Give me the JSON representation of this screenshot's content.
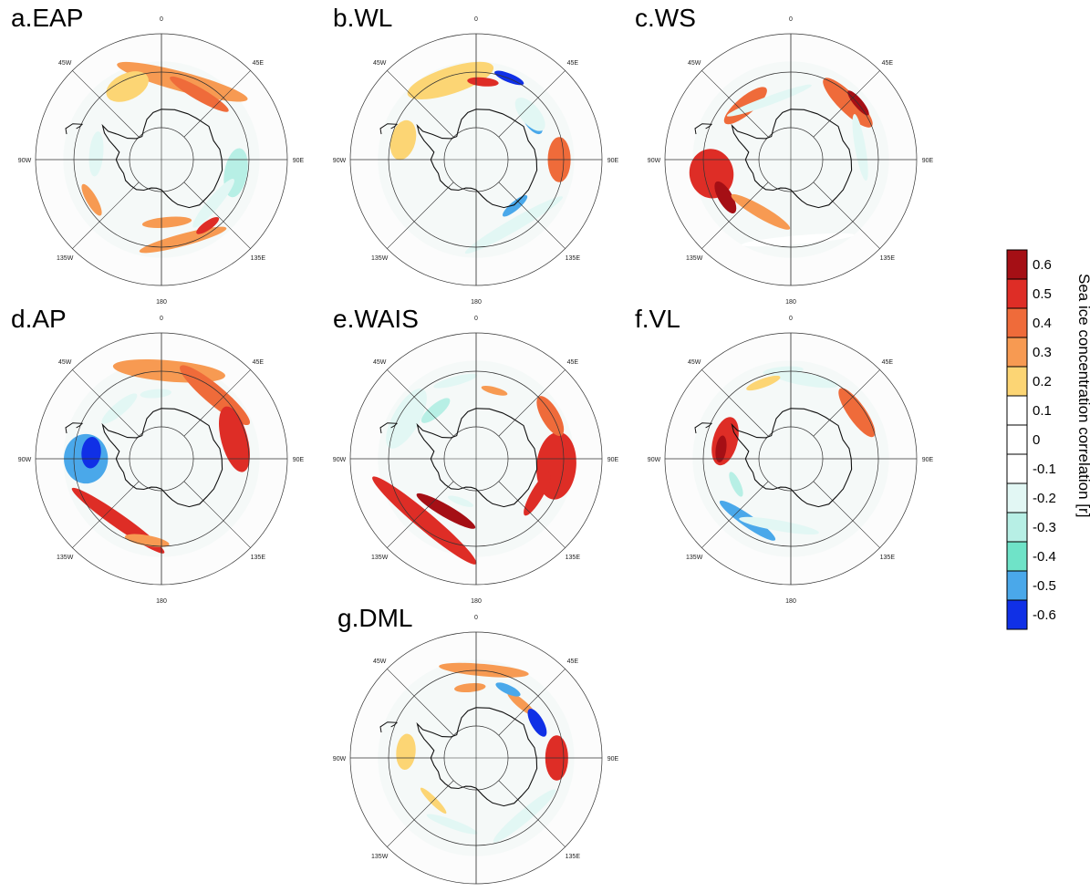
{
  "panels": [
    {
      "id": "a",
      "title": "a.EAP",
      "blobs": [
        {
          "lat": -58,
          "lon": 15,
          "w": 60,
          "h": 22,
          "rot": 0,
          "v": 0.25
        },
        {
          "lat": -60,
          "lon": 30,
          "w": 30,
          "h": 14,
          "rot": 0,
          "v": 0.4
        },
        {
          "lat": -58,
          "lon": -25,
          "w": 20,
          "h": 30,
          "rot": 0,
          "v": 0.2
        },
        {
          "lat": -64,
          "lon": -85,
          "w": 20,
          "h": 16,
          "rot": 0,
          "v": -0.2
        },
        {
          "lat": -60,
          "lon": 100,
          "w": 22,
          "h": 26,
          "rot": 0,
          "v": -0.3
        },
        {
          "lat": -63,
          "lon": 130,
          "w": 28,
          "h": 14,
          "rot": 0,
          "v": -0.2
        },
        {
          "lat": -57,
          "lon": 165,
          "w": 40,
          "h": 14,
          "rot": 0,
          "v": 0.25
        },
        {
          "lat": -65,
          "lon": 175,
          "w": 22,
          "h": 12,
          "rot": 0,
          "v": 0.3
        },
        {
          "lat": -58,
          "lon": -120,
          "w": 16,
          "h": 12,
          "rot": 0,
          "v": 0.3
        },
        {
          "lat": -58,
          "lon": 145,
          "w": 12,
          "h": 10,
          "rot": 0,
          "v": 0.5
        }
      ]
    },
    {
      "id": "b",
      "title": "b.WL",
      "blobs": [
        {
          "lat": -57,
          "lon": -18,
          "w": 40,
          "h": 30,
          "rot": 0,
          "v": 0.2
        },
        {
          "lat": -59,
          "lon": 5,
          "w": 14,
          "h": 10,
          "rot": 0,
          "v": 0.5
        },
        {
          "lat": -55,
          "lon": 22,
          "w": 14,
          "h": 10,
          "rot": 0,
          "v": -0.6
        },
        {
          "lat": -63,
          "lon": 55,
          "w": 14,
          "h": 16,
          "rot": 0,
          "v": -0.55
        },
        {
          "lat": -57,
          "lon": 90,
          "w": 20,
          "h": 26,
          "rot": 0,
          "v": 0.4
        },
        {
          "lat": -60,
          "lon": -75,
          "w": 18,
          "h": 28,
          "rot": 0,
          "v": 0.2
        },
        {
          "lat": -60,
          "lon": 150,
          "w": 50,
          "h": 14,
          "rot": 0,
          "v": -0.25
        },
        {
          "lat": -66,
          "lon": 140,
          "w": 14,
          "h": 10,
          "rot": 0,
          "v": -0.55
        },
        {
          "lat": -62,
          "lon": 50,
          "w": 18,
          "h": 22,
          "rot": 0,
          "v": -0.2
        }
      ]
    },
    {
      "id": "c",
      "title": "c.WS",
      "blobs": [
        {
          "lat": -58,
          "lon": 45,
          "w": 30,
          "h": 22,
          "rot": 0,
          "v": 0.35
        },
        {
          "lat": -55,
          "lon": 50,
          "w": 14,
          "h": 10,
          "rot": 0,
          "v": 0.55
        },
        {
          "lat": -62,
          "lon": -40,
          "w": 24,
          "h": 20,
          "rot": 0,
          "v": 0.35
        },
        {
          "lat": -58,
          "lon": -100,
          "w": 22,
          "h": 50,
          "rot": 0,
          "v": 0.5
        },
        {
          "lat": -60,
          "lon": -120,
          "w": 16,
          "h": 16,
          "rot": 0,
          "v": 0.6
        },
        {
          "lat": -66,
          "lon": -150,
          "w": 30,
          "h": 14,
          "rot": 0,
          "v": 0.3
        },
        {
          "lat": -65,
          "lon": -20,
          "w": 40,
          "h": 10,
          "rot": 0,
          "v": -0.2
        },
        {
          "lat": -62,
          "lon": 80,
          "w": 30,
          "h": 12,
          "rot": 0,
          "v": -0.2
        },
        {
          "lat": -58,
          "lon": 175,
          "w": 50,
          "h": 10,
          "rot": 0,
          "v": -0.15
        }
      ]
    },
    {
      "id": "d",
      "title": "d.AP",
      "blobs": [
        {
          "lat": -55,
          "lon": 5,
          "w": 50,
          "h": 24,
          "rot": 0,
          "v": 0.3
        },
        {
          "lat": -57,
          "lon": 40,
          "w": 40,
          "h": 22,
          "rot": 0,
          "v": 0.35
        },
        {
          "lat": -60,
          "lon": 75,
          "w": 30,
          "h": 30,
          "rot": 0,
          "v": 0.45
        },
        {
          "lat": -60,
          "lon": -90,
          "w": 22,
          "h": 50,
          "rot": 0,
          "v": -0.55
        },
        {
          "lat": -62,
          "lon": -85,
          "w": 14,
          "h": 22,
          "rot": 0,
          "v": -0.65
        },
        {
          "lat": -60,
          "lon": -145,
          "w": 50,
          "h": 16,
          "rot": 0,
          "v": 0.45
        },
        {
          "lat": -57,
          "lon": -170,
          "w": 20,
          "h": 12,
          "rot": 0,
          "v": 0.3
        },
        {
          "lat": -64,
          "lon": -40,
          "w": 20,
          "h": 14,
          "rot": 0,
          "v": -0.2
        },
        {
          "lat": -64,
          "lon": -5,
          "w": 14,
          "h": 10,
          "rot": 0,
          "v": -0.25
        }
      ]
    },
    {
      "id": "e",
      "title": "e.WAIS",
      "blobs": [
        {
          "lat": -58,
          "lon": -140,
          "w": 60,
          "h": 20,
          "rot": 0,
          "v": 0.5
        },
        {
          "lat": -66,
          "lon": -150,
          "w": 30,
          "h": 14,
          "rot": 0,
          "v": 0.55
        },
        {
          "lat": -58,
          "lon": 95,
          "w": 30,
          "h": 45,
          "rot": 0,
          "v": 0.45
        },
        {
          "lat": -56,
          "lon": 60,
          "w": 20,
          "h": 20,
          "rot": 0,
          "v": 0.4
        },
        {
          "lat": -62,
          "lon": 120,
          "w": 22,
          "h": 14,
          "rot": 0,
          "v": 0.45
        },
        {
          "lat": -62,
          "lon": 15,
          "w": 12,
          "h": 8,
          "rot": 0,
          "v": 0.3
        },
        {
          "lat": -58,
          "lon": -60,
          "w": 30,
          "h": 30,
          "rot": 0,
          "v": -0.25
        },
        {
          "lat": -65,
          "lon": -40,
          "w": 16,
          "h": 14,
          "rot": 0,
          "v": -0.3
        },
        {
          "lat": -58,
          "lon": -15,
          "w": 20,
          "h": 10,
          "rot": 0,
          "v": -0.2
        },
        {
          "lat": -72,
          "lon": -160,
          "w": 12,
          "h": 8,
          "rot": 0,
          "v": -0.25
        }
      ]
    },
    {
      "id": "f",
      "title": "f.VL",
      "blobs": [
        {
          "lat": -63,
          "lon": -75,
          "w": 22,
          "h": 28,
          "rot": 0,
          "v": 0.45
        },
        {
          "lat": -62,
          "lon": -82,
          "w": 12,
          "h": 12,
          "rot": 0,
          "v": 0.6
        },
        {
          "lat": -58,
          "lon": 55,
          "w": 26,
          "h": 20,
          "rot": 0,
          "v": 0.35
        },
        {
          "lat": -60,
          "lon": -145,
          "w": 30,
          "h": 14,
          "rot": 0,
          "v": -0.5
        },
        {
          "lat": -63,
          "lon": -170,
          "w": 36,
          "h": 12,
          "rot": 0,
          "v": -0.2
        },
        {
          "lat": -58,
          "lon": 10,
          "w": 30,
          "h": 14,
          "rot": 0,
          "v": -0.25
        },
        {
          "lat": -58,
          "lon": -20,
          "w": 16,
          "h": 10,
          "rot": 0,
          "v": 0.2
        },
        {
          "lat": -66,
          "lon": -115,
          "w": 12,
          "h": 10,
          "rot": 0,
          "v": -0.3
        },
        {
          "lat": -55,
          "lon": -5,
          "w": 18,
          "h": 10,
          "rot": 0,
          "v": -0.2
        }
      ]
    },
    {
      "id": "g",
      "title": "g.DML",
      "blobs": [
        {
          "lat": -55,
          "lon": 5,
          "w": 40,
          "h": 14,
          "rot": 0,
          "v": 0.25
        },
        {
          "lat": -62,
          "lon": 40,
          "w": 16,
          "h": 10,
          "rot": 0,
          "v": 0.3
        },
        {
          "lat": -60,
          "lon": 25,
          "w": 12,
          "h": 10,
          "rot": 0,
          "v": -0.55
        },
        {
          "lat": -62,
          "lon": 60,
          "w": 14,
          "h": 14,
          "rot": 0,
          "v": -0.6
        },
        {
          "lat": -58,
          "lon": 90,
          "w": 20,
          "h": 26,
          "rot": 0,
          "v": 0.45
        },
        {
          "lat": -62,
          "lon": -85,
          "w": 16,
          "h": 22,
          "rot": 0,
          "v": 0.2
        },
        {
          "lat": -62,
          "lon": -5,
          "w": 14,
          "h": 10,
          "rot": 0,
          "v": 0.3
        },
        {
          "lat": -62,
          "lon": -160,
          "w": 24,
          "h": 10,
          "rot": 0,
          "v": -0.2
        },
        {
          "lat": -60,
          "lon": 140,
          "w": 36,
          "h": 14,
          "rot": 0,
          "v": -0.25
        },
        {
          "lat": -66,
          "lon": -135,
          "w": 16,
          "h": 8,
          "rot": 0,
          "v": 0.2
        }
      ]
    }
  ],
  "map_labels": {
    "top": "0",
    "top_right": "45E",
    "right": "90E",
    "bottom_right": "135E",
    "bottom": "180",
    "bottom_left": "135W",
    "left": "90W",
    "top_left": "45W"
  },
  "colorbar": {
    "title": "Sea ice concentration correlation [r]",
    "tick_labels": [
      "0.6",
      "0.5",
      "0.4",
      "0.3",
      "0.2",
      "0.1",
      "0",
      "-0.1",
      "-0.2",
      "-0.3",
      "-0.4",
      "-0.5",
      "-0.6"
    ],
    "levels": [
      {
        "min": 0.55,
        "color": "#a50f15"
      },
      {
        "min": 0.45,
        "color": "#de2d26"
      },
      {
        "min": 0.35,
        "color": "#ef6b3a"
      },
      {
        "min": 0.25,
        "color": "#f79a52"
      },
      {
        "min": 0.15,
        "color": "#fcd574"
      },
      {
        "min": 0.05,
        "color": "#ffffff"
      },
      {
        "min": -0.05,
        "color": "#ffffff"
      },
      {
        "min": -0.15,
        "color": "#ffffff"
      },
      {
        "min": -0.25,
        "color": "#e2f7f4"
      },
      {
        "min": -0.35,
        "color": "#b7efe5"
      },
      {
        "min": -0.45,
        "color": "#6fe3c8"
      },
      {
        "min": -0.55,
        "color": "#4aa8ea"
      },
      {
        "min": -1.0,
        "color": "#1030e6"
      }
    ]
  }
}
